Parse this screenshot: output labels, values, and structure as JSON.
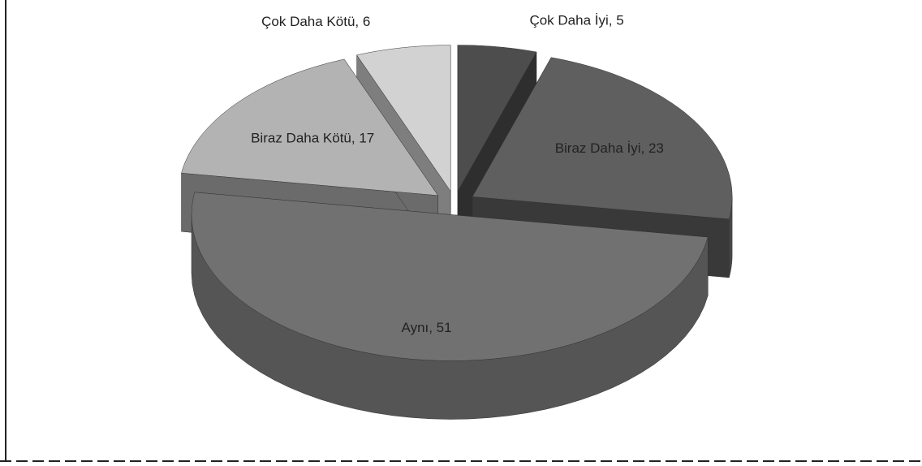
{
  "chart_data": {
    "type": "pie3d",
    "values": [
      5,
      23,
      51,
      17,
      6
    ],
    "value_labels": [
      "Çok Daha İyi, 5",
      "Biraz Daha İyi, 23",
      "Aynı, 51",
      "Biraz Daha Kötü, 17",
      "Çok Daha Kötü, 6"
    ],
    "colors": [
      "#4d4d4d",
      "#5f5f5f",
      "#717171",
      "#b3b3b3",
      "#d2d2d2"
    ]
  }
}
